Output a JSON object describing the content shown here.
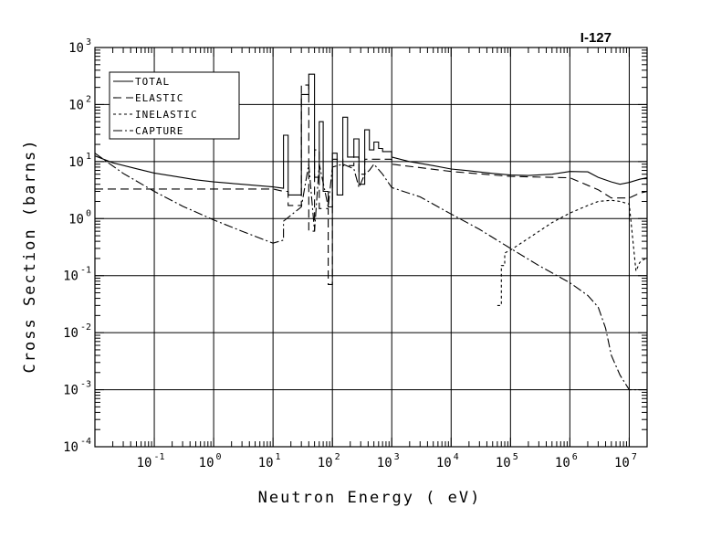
{
  "chart_data": {
    "type": "line",
    "title": "I-127",
    "xlabel": "Neutron Energy ( eV)",
    "ylabel": "Cross Section (barns)",
    "x_scale": "log",
    "y_scale": "log",
    "xlim": [
      0.01,
      20000000
    ],
    "ylim": [
      0.0001,
      1000
    ],
    "grid": true,
    "legend_position": "top-left",
    "x_ticks": [
      {
        "base": "10",
        "exp": "-1",
        "value": 0.1
      },
      {
        "base": "10",
        "exp": "0",
        "value": 1
      },
      {
        "base": "10",
        "exp": "1",
        "value": 10
      },
      {
        "base": "10",
        "exp": "2",
        "value": 100
      },
      {
        "base": "10",
        "exp": "3",
        "value": 1000
      },
      {
        "base": "10",
        "exp": "4",
        "value": 10000
      },
      {
        "base": "10",
        "exp": "5",
        "value": 100000
      },
      {
        "base": "10",
        "exp": "6",
        "value": 1000000
      },
      {
        "base": "10",
        "exp": "7",
        "value": 10000000
      }
    ],
    "y_ticks": [
      {
        "base": "10",
        "exp": "-4",
        "value": 0.0001
      },
      {
        "base": "10",
        "exp": "-3",
        "value": 0.001
      },
      {
        "base": "10",
        "exp": "-2",
        "value": 0.01
      },
      {
        "base": "10",
        "exp": "-1",
        "value": 0.1
      },
      {
        "base": "10",
        "exp": "0",
        "value": 1
      },
      {
        "base": "10",
        "exp": "1",
        "value": 10
      },
      {
        "base": "10",
        "exp": "2",
        "value": 100
      },
      {
        "base": "10",
        "exp": "3",
        "value": 1000
      }
    ],
    "series": [
      {
        "name": "TOTAL",
        "dash": "",
        "points": [
          [
            0.01,
            12.6
          ],
          [
            0.02,
            9.5
          ],
          [
            0.05,
            7.5
          ],
          [
            0.1,
            6.3
          ],
          [
            0.2,
            5.6
          ],
          [
            0.5,
            4.8
          ],
          [
            1,
            4.4
          ],
          [
            3,
            4
          ],
          [
            10,
            3.6
          ],
          [
            15,
            3.4
          ],
          [
            15,
            29
          ],
          [
            18,
            29
          ],
          [
            18,
            2.6
          ],
          [
            30,
            2.6
          ],
          [
            30,
            150
          ],
          [
            40,
            150
          ],
          [
            40,
            340
          ],
          [
            50,
            340
          ],
          [
            50,
            5.3
          ],
          [
            60,
            5.3
          ],
          [
            60,
            50
          ],
          [
            70,
            50
          ],
          [
            70,
            3
          ],
          [
            85,
            3
          ],
          [
            85,
            1.6
          ],
          [
            100,
            1.6
          ],
          [
            100,
            14
          ],
          [
            120,
            14
          ],
          [
            120,
            2.6
          ],
          [
            150,
            2.6
          ],
          [
            150,
            60
          ],
          [
            180,
            60
          ],
          [
            180,
            12
          ],
          [
            230,
            12
          ],
          [
            230,
            25
          ],
          [
            280,
            25
          ],
          [
            280,
            4
          ],
          [
            350,
            4
          ],
          [
            350,
            36
          ],
          [
            420,
            36
          ],
          [
            420,
            16
          ],
          [
            500,
            16
          ],
          [
            500,
            22
          ],
          [
            600,
            22
          ],
          [
            600,
            17
          ],
          [
            700,
            17
          ],
          [
            700,
            15
          ],
          [
            1000,
            15
          ],
          [
            1000,
            12
          ],
          [
            2000,
            10
          ],
          [
            3000,
            9.3
          ],
          [
            5000,
            8.5
          ],
          [
            10000,
            7.4
          ],
          [
            20000,
            6.9
          ],
          [
            50000,
            6.2
          ],
          [
            100000,
            5.8
          ],
          [
            200000,
            5.7
          ],
          [
            500000,
            6
          ],
          [
            1000000,
            6.7
          ],
          [
            2000000,
            6.6
          ],
          [
            3000000,
            5.3
          ],
          [
            5000000,
            4.4
          ],
          [
            7000000,
            4.0
          ],
          [
            10000000,
            4.3
          ],
          [
            15000000,
            4.9
          ],
          [
            20000000,
            5.2
          ]
        ]
      },
      {
        "name": "ELASTIC",
        "dash": "9,5",
        "points": [
          [
            0.01,
            3.3
          ],
          [
            0.1,
            3.3
          ],
          [
            1,
            3.3
          ],
          [
            10,
            3.3
          ],
          [
            15,
            3.0
          ],
          [
            18,
            3.0
          ],
          [
            18,
            1.7
          ],
          [
            30,
            1.7
          ],
          [
            30,
            220
          ],
          [
            40,
            220
          ],
          [
            40,
            0.6
          ],
          [
            50,
            0.6
          ],
          [
            50,
            16
          ],
          [
            60,
            16
          ],
          [
            60,
            1.5
          ],
          [
            85,
            1.5
          ],
          [
            85,
            0.07
          ],
          [
            100,
            0.07
          ],
          [
            100,
            11
          ],
          [
            150,
            11
          ],
          [
            150,
            8.5
          ],
          [
            230,
            8.5
          ],
          [
            230,
            12
          ],
          [
            280,
            12
          ],
          [
            280,
            6
          ],
          [
            350,
            6
          ],
          [
            350,
            11
          ],
          [
            1000,
            11
          ],
          [
            1000,
            9
          ],
          [
            10000,
            6.7
          ],
          [
            100000,
            5.5
          ],
          [
            1000000,
            5.2
          ],
          [
            3000000,
            3.2
          ],
          [
            5000000,
            2.3
          ],
          [
            10000000,
            2.3
          ],
          [
            15000000,
            2.8
          ],
          [
            20000000,
            3
          ]
        ]
      },
      {
        "name": "INELASTIC",
        "dash": "3,3",
        "points": [
          [
            60000,
            0.03
          ],
          [
            70000,
            0.03
          ],
          [
            70000,
            0.15
          ],
          [
            80000,
            0.15
          ],
          [
            80000,
            0.25
          ],
          [
            100000,
            0.28
          ],
          [
            200000,
            0.45
          ],
          [
            500000,
            0.85
          ],
          [
            1000000,
            1.25
          ],
          [
            2000000,
            1.7
          ],
          [
            3000000,
            2.0
          ],
          [
            5000000,
            2.1
          ],
          [
            7000000,
            2.0
          ],
          [
            10000000,
            1.8
          ],
          [
            13000000,
            0.12
          ],
          [
            15000000,
            0.17
          ],
          [
            20000000,
            0.21
          ]
        ]
      },
      {
        "name": "CAPTURE",
        "dash": "10,3,2,3",
        "points": [
          [
            0.01,
            14
          ],
          [
            0.03,
            6.2
          ],
          [
            0.1,
            3
          ],
          [
            0.3,
            1.65
          ],
          [
            1,
            0.95
          ],
          [
            3,
            0.6
          ],
          [
            10,
            0.37
          ],
          [
            15,
            0.42
          ],
          [
            15,
            0.9
          ],
          [
            30,
            1.6
          ],
          [
            40,
            9
          ],
          [
            50,
            0.6
          ],
          [
            60,
            9
          ],
          [
            85,
            1.6
          ],
          [
            100,
            8
          ],
          [
            150,
            9
          ],
          [
            230,
            7.5
          ],
          [
            280,
            3.5
          ],
          [
            350,
            6
          ],
          [
            420,
            7
          ],
          [
            500,
            9
          ],
          [
            700,
            6
          ],
          [
            1000,
            3.5
          ],
          [
            3000,
            2.4
          ],
          [
            10000,
            1.2
          ],
          [
            30000,
            0.65
          ],
          [
            100000,
            0.3
          ],
          [
            300000,
            0.15
          ],
          [
            1000000,
            0.075
          ],
          [
            2000000,
            0.045
          ],
          [
            3000000,
            0.028
          ],
          [
            4000000,
            0.012
          ],
          [
            5000000,
            0.004
          ],
          [
            7000000,
            0.0018
          ],
          [
            10000000,
            0.001
          ],
          [
            20000000,
            0.001
          ]
        ]
      }
    ]
  }
}
